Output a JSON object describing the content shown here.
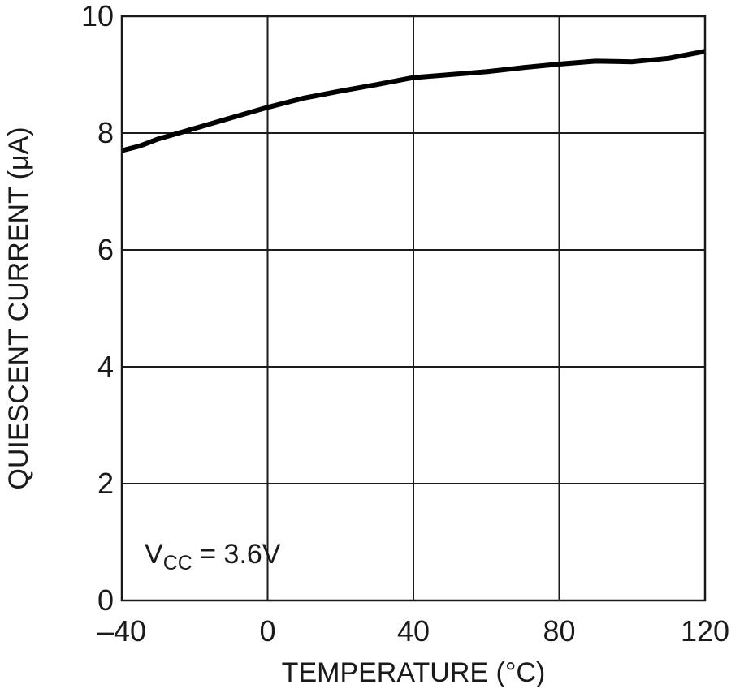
{
  "chart_data": {
    "type": "line",
    "title": "",
    "xlabel": "TEMPERATURE (°C)",
    "ylabel": "QUIESCENT CURRENT (μA)",
    "xlim": [
      -40,
      120
    ],
    "ylim": [
      0,
      10
    ],
    "x_ticks": [
      -40,
      0,
      40,
      80,
      120
    ],
    "y_ticks": [
      0,
      2,
      4,
      6,
      8,
      10
    ],
    "x_tick_labels": [
      "–40",
      "0",
      "40",
      "80",
      "120"
    ],
    "y_tick_labels": [
      "0",
      "2",
      "4",
      "6",
      "8",
      "10"
    ],
    "grid": true,
    "annotation": {
      "main": "V",
      "subscript": "CC",
      "suffix": " = 3.6V"
    },
    "series": [
      {
        "x": [
          -40,
          -35,
          -30,
          -20,
          -10,
          0,
          10,
          20,
          30,
          40,
          50,
          60,
          70,
          80,
          90,
          100,
          110,
          120
        ],
        "y": [
          7.7,
          7.78,
          7.9,
          8.08,
          8.26,
          8.44,
          8.6,
          8.72,
          8.83,
          8.95,
          9.0,
          9.05,
          9.12,
          9.18,
          9.23,
          9.22,
          9.28,
          9.4
        ]
      }
    ],
    "line_color": "#000000",
    "grid_color": "#1a1a1a"
  }
}
